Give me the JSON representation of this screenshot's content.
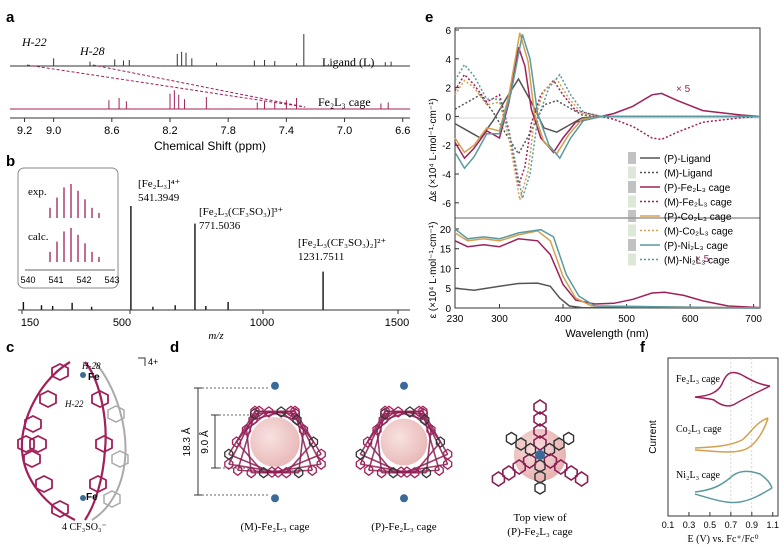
{
  "panels": {
    "a": {
      "letter": "a",
      "axis_ticks": [
        "9.2",
        "9.0",
        "8.6",
        "8.2",
        "7.8",
        "7.4",
        "7.0",
        "6.6"
      ],
      "axis_title": "Chemical Shift (ppm)",
      "labels": {
        "h22": "H-22",
        "h28": "H-28",
        "ligand": "Ligand (L)",
        "cage": "Fe₂L₃ cage"
      }
    },
    "b": {
      "letter": "b",
      "inset": {
        "exp": "exp.",
        "calc": "calc.",
        "ticks": [
          "540",
          "541",
          "542",
          "543"
        ]
      },
      "peaks": [
        {
          "formula": "[Fe₂L₃]⁴⁺",
          "mz": "541.3949"
        },
        {
          "formula": "[Fe₂L₃(CF₃SO₃)]³⁺",
          "mz": "771.5036"
        },
        {
          "formula": "[Fe₂L₃(CF₃SO₃)₂]²⁺",
          "mz": "1231.7511"
        }
      ],
      "axis_ticks": [
        "150",
        "500",
        "1000",
        "1500"
      ],
      "axis_title": "m/z"
    },
    "c": {
      "letter": "c",
      "charge": "4+",
      "h28": "H-28",
      "h22": "H-22",
      "fe_top": "Fe",
      "fe_bottom": "Fe",
      "counterion": "4 CF₃SO₃⁻"
    },
    "d": {
      "letter": "d",
      "dim1": "18.3 Å",
      "dim2": "9.0 Å",
      "captions": [
        "(M)-Fe₂L₃ cage",
        "(P)-Fe₂L₃ cage",
        "Top view of",
        "(P)-Fe₂L₃ cage"
      ]
    },
    "e": {
      "letter": "e"
    },
    "f": {
      "letter": "f"
    }
  },
  "chart_data": [
    {
      "type": "line",
      "panel": "e-top",
      "ylabel": "Δε (×10⁴ L·mol⁻¹·cm⁻¹)",
      "yticks": [
        "6",
        "4",
        "2",
        "0",
        "-2",
        "-4",
        "-6"
      ],
      "ylim": [
        -6.5,
        6
      ],
      "xlim": [
        230,
        710
      ],
      "annotation": "× 5",
      "series": [
        {
          "name": "(P)-Ligand",
          "color": "#555555",
          "dashed": false,
          "points": [
            [
              230,
              -0.5
            ],
            [
              250,
              -1.0
            ],
            [
              270,
              -1.5
            ],
            [
              290,
              -0.3
            ],
            [
              310,
              1.2
            ],
            [
              330,
              2.6
            ],
            [
              350,
              1.0
            ],
            [
              370,
              -0.8
            ],
            [
              390,
              -1.1
            ],
            [
              410,
              -0.6
            ],
            [
              430,
              -0.1
            ],
            [
              460,
              0
            ],
            [
              710,
              0
            ]
          ]
        },
        {
          "name": "(M)-Ligand",
          "color": "#555555",
          "dashed": true,
          "points": [
            [
              230,
              0.5
            ],
            [
              250,
              1.0
            ],
            [
              270,
              1.5
            ],
            [
              290,
              0.3
            ],
            [
              310,
              -1.2
            ],
            [
              330,
              -2.6
            ],
            [
              350,
              -1.0
            ],
            [
              370,
              0.8
            ],
            [
              390,
              1.1
            ],
            [
              410,
              0.6
            ],
            [
              430,
              0.1
            ],
            [
              460,
              0
            ],
            [
              710,
              0
            ]
          ]
        },
        {
          "name": "(P)-Fe₂L₃ cage",
          "color": "#a0205a",
          "dashed": false,
          "points": [
            [
              230,
              -1.8
            ],
            [
              245,
              -2.9
            ],
            [
              260,
              -2.2
            ],
            [
              280,
              -1.0
            ],
            [
              300,
              -1.5
            ],
            [
              315,
              1.0
            ],
            [
              330,
              4.8
            ],
            [
              340,
              3.5
            ],
            [
              350,
              0.5
            ],
            [
              365,
              -1.5
            ],
            [
              385,
              -2.5
            ],
            [
              400,
              -1.5
            ],
            [
              420,
              -0.4
            ],
            [
              450,
              -0.1
            ],
            [
              480,
              0.2
            ],
            [
              510,
              0.7
            ],
            [
              540,
              1.5
            ],
            [
              555,
              1.6
            ],
            [
              580,
              1.1
            ],
            [
              620,
              0.4
            ],
            [
              680,
              0.1
            ],
            [
              710,
              0
            ]
          ]
        },
        {
          "name": "(M)-Fe₂L₃ cage",
          "color": "#a0205a",
          "dashed": true,
          "points": [
            [
              230,
              1.8
            ],
            [
              245,
              2.9
            ],
            [
              260,
              2.2
            ],
            [
              280,
              1.0
            ],
            [
              300,
              1.5
            ],
            [
              315,
              -1.0
            ],
            [
              330,
              -4.8
            ],
            [
              340,
              -3.5
            ],
            [
              350,
              -0.5
            ],
            [
              365,
              1.5
            ],
            [
              385,
              2.5
            ],
            [
              400,
              1.5
            ],
            [
              420,
              0.4
            ],
            [
              450,
              0.1
            ],
            [
              480,
              -0.2
            ],
            [
              510,
              -0.7
            ],
            [
              540,
              -1.5
            ],
            [
              555,
              -1.6
            ],
            [
              580,
              -1.1
            ],
            [
              620,
              -0.4
            ],
            [
              680,
              -0.1
            ],
            [
              710,
              0
            ]
          ]
        },
        {
          "name": "(P)-Co₂L₃ cage",
          "color": "#d4a050",
          "dashed": false,
          "points": [
            [
              230,
              -1.5
            ],
            [
              245,
              -2.5
            ],
            [
              260,
              -2.0
            ],
            [
              280,
              -0.8
            ],
            [
              300,
              -1.0
            ],
            [
              315,
              1.5
            ],
            [
              332,
              5.8
            ],
            [
              345,
              3.8
            ],
            [
              355,
              0.2
            ],
            [
              370,
              -1.8
            ],
            [
              390,
              -2.6
            ],
            [
              410,
              -1.2
            ],
            [
              430,
              -0.2
            ],
            [
              460,
              0
            ],
            [
              710,
              0
            ]
          ]
        },
        {
          "name": "(M)-Co₂L₃ cage",
          "color": "#d4a050",
          "dashed": true,
          "points": [
            [
              230,
              1.5
            ],
            [
              245,
              2.5
            ],
            [
              260,
              2.0
            ],
            [
              280,
              0.8
            ],
            [
              300,
              1.0
            ],
            [
              315,
              -1.5
            ],
            [
              332,
              -5.8
            ],
            [
              345,
              -3.8
            ],
            [
              355,
              -0.2
            ],
            [
              370,
              1.8
            ],
            [
              390,
              2.6
            ],
            [
              410,
              1.2
            ],
            [
              430,
              0.2
            ],
            [
              460,
              0
            ],
            [
              710,
              0
            ]
          ]
        },
        {
          "name": "(P)-Ni₂L₃ cage",
          "color": "#5a9aa0",
          "dashed": false,
          "points": [
            [
              230,
              -2.5
            ],
            [
              245,
              -3.6
            ],
            [
              260,
              -2.8
            ],
            [
              280,
              -1.2
            ],
            [
              300,
              -1.2
            ],
            [
              318,
              1.6
            ],
            [
              336,
              5.7
            ],
            [
              348,
              4.0
            ],
            [
              360,
              0.2
            ],
            [
              378,
              -2.0
            ],
            [
              395,
              -2.9
            ],
            [
              412,
              -1.5
            ],
            [
              432,
              -0.3
            ],
            [
              460,
              0
            ],
            [
              710,
              0
            ]
          ]
        },
        {
          "name": "(M)-Ni₂L₃ cage",
          "color": "#5a9aa0",
          "dashed": true,
          "points": [
            [
              230,
              2.5
            ],
            [
              245,
              3.6
            ],
            [
              260,
              2.8
            ],
            [
              280,
              1.2
            ],
            [
              300,
              1.2
            ],
            [
              318,
              -1.6
            ],
            [
              336,
              -5.7
            ],
            [
              348,
              -4.0
            ],
            [
              360,
              -0.2
            ],
            [
              378,
              2.0
            ],
            [
              395,
              2.9
            ],
            [
              412,
              1.5
            ],
            [
              432,
              0.3
            ],
            [
              460,
              0
            ],
            [
              710,
              0
            ]
          ]
        }
      ]
    },
    {
      "type": "line",
      "panel": "e-bottom",
      "ylabel": "ε (×10⁴ L·mol⁻¹·cm⁻¹)",
      "xlabel": "Wavelength (nm)",
      "yticks": [
        "0",
        "5",
        "10",
        "15",
        "20"
      ],
      "xticks": [
        "230",
        "300",
        "400",
        "500",
        "600",
        "700"
      ],
      "ylim": [
        0,
        21
      ],
      "xlim": [
        230,
        710
      ],
      "annotation": "× 5",
      "series": [
        {
          "name": "(P)-Ligand",
          "color": "#555555",
          "points": [
            [
              230,
              5
            ],
            [
              260,
              4.5
            ],
            [
              300,
              5.5
            ],
            [
              330,
              6.2
            ],
            [
              360,
              6.3
            ],
            [
              380,
              5.5
            ],
            [
              395,
              2.5
            ],
            [
              410,
              0.5
            ],
            [
              430,
              0.1
            ],
            [
              710,
              0
            ]
          ]
        },
        {
          "name": "(P)-Fe₂L₃ cage",
          "color": "#a0205a",
          "points": [
            [
              230,
              17
            ],
            [
              250,
              15.5
            ],
            [
              275,
              16
            ],
            [
              300,
              15.5
            ],
            [
              330,
              17.5
            ],
            [
              360,
              17
            ],
            [
              380,
              13.5
            ],
            [
              400,
              6
            ],
            [
              420,
              2
            ],
            [
              450,
              1.0
            ],
            [
              480,
              1.2
            ],
            [
              510,
              2.2
            ],
            [
              540,
              3.8
            ],
            [
              560,
              4.0
            ],
            [
              590,
              3.2
            ],
            [
              620,
              1.8
            ],
            [
              660,
              0.5
            ],
            [
              710,
              0.1
            ]
          ]
        },
        {
          "name": "(P)-Co₂L₃ cage",
          "color": "#d4a050",
          "points": [
            [
              230,
              19
            ],
            [
              250,
              17
            ],
            [
              275,
              17.5
            ],
            [
              300,
              17
            ],
            [
              330,
              18.5
            ],
            [
              360,
              19.5
            ],
            [
              380,
              17
            ],
            [
              400,
              8
            ],
            [
              420,
              2.5
            ],
            [
              445,
              0.5
            ],
            [
              710,
              0
            ]
          ]
        },
        {
          "name": "(P)-Ni₂L₃ cage",
          "color": "#5a9aa0",
          "points": [
            [
              230,
              20
            ],
            [
              250,
              17.5
            ],
            [
              275,
              18
            ],
            [
              300,
              17.5
            ],
            [
              330,
              19
            ],
            [
              365,
              19.8
            ],
            [
              385,
              18
            ],
            [
              405,
              8.5
            ],
            [
              425,
              3
            ],
            [
              450,
              0.5
            ],
            [
              710,
              0
            ]
          ]
        }
      ]
    },
    {
      "type": "line",
      "panel": "f",
      "ylabel": "Current",
      "xlabel": "E (V)  vs. Fc⁺/Fc⁰",
      "xticks": [
        "0.1",
        "0.3",
        "0.5",
        "0.7",
        "0.9",
        "1.1"
      ],
      "xlim": [
        0.1,
        1.15
      ],
      "series": [
        {
          "name": "Fe₂L₃ cage",
          "color": "#a0205a"
        },
        {
          "name": "Co₂L₃ cage",
          "color": "#d4a050"
        },
        {
          "name": "Ni₂L₃ cage",
          "color": "#5a9aa0"
        }
      ]
    }
  ]
}
